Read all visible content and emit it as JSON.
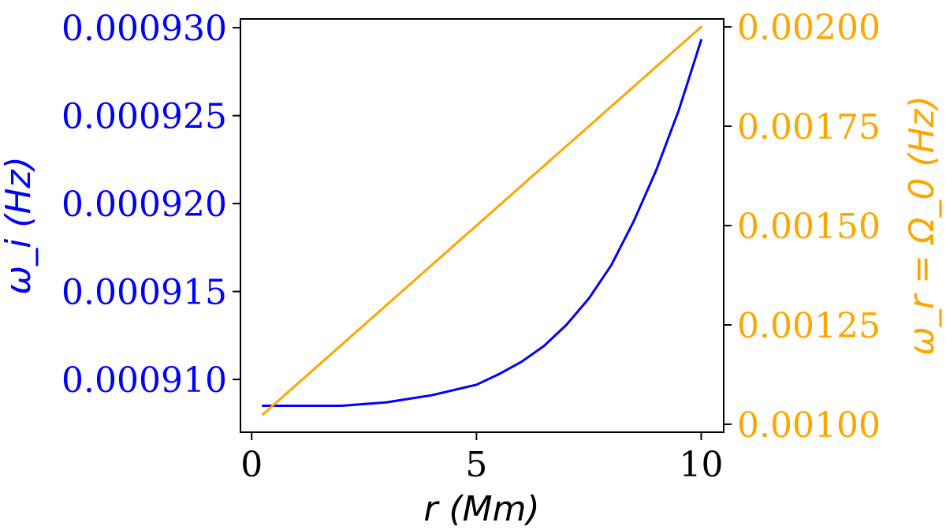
{
  "chart_data": {
    "type": "line",
    "title": "",
    "xlabel": "r (Mm)",
    "ylabel_left": "ω_i (Hz)",
    "ylabel_right": "ω_r = Ω_0 (Hz)",
    "xlim": [
      -0.25,
      10.5
    ],
    "ylim_left": [
      0.000907,
      0.0009305
    ],
    "ylim_right": [
      0.00098,
      0.00202
    ],
    "x_ticks": [
      "0",
      "5",
      "10"
    ],
    "y_left_ticks": [
      "0.000910",
      "0.000915",
      "0.000920",
      "0.000925",
      "0.000930"
    ],
    "y_right_ticks": [
      "0.00100",
      "0.00125",
      "0.00150",
      "0.00175",
      "0.00200"
    ],
    "grid": false,
    "legend": "none",
    "series": [
      {
        "axis": "left",
        "color": "#0000ff",
        "x": [
          0.25,
          1.0,
          2.0,
          3.0,
          4.0,
          4.5,
          5.0,
          5.5,
          6.0,
          6.5,
          7.0,
          7.5,
          8.0,
          8.5,
          9.0,
          9.5,
          10.0
        ],
        "y": [
          0.0009085,
          0.0009085,
          0.0009085,
          0.0009087,
          0.0009091,
          0.0009094,
          0.0009097,
          0.0009103,
          0.000911,
          0.0009119,
          0.0009131,
          0.0009146,
          0.0009165,
          0.000919,
          0.0009219,
          0.0009253,
          0.0009293
        ]
      },
      {
        "axis": "right",
        "color": "#ffa500",
        "x": [
          0.25,
          10.0
        ],
        "y": [
          0.001025,
          0.002
        ]
      }
    ]
  }
}
